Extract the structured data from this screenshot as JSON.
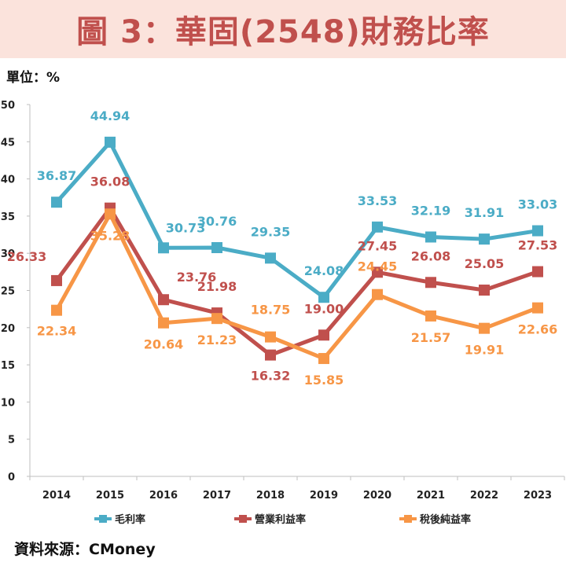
{
  "title": "圖 3：華固(2548)財務比率",
  "unit_label": "單位：%",
  "source": "資料來源：CMoney",
  "colors": {
    "title_bg": "#fbe3dc",
    "title_text": "#c0504d"
  },
  "chart_data": {
    "type": "line",
    "x": [
      "2014",
      "2015",
      "2016",
      "2017",
      "2018",
      "2019",
      "2020",
      "2021",
      "2022",
      "2023"
    ],
    "ylim": [
      0,
      50
    ],
    "yticks": [
      0,
      5,
      10,
      15,
      20,
      25,
      30,
      35,
      40,
      45,
      50
    ],
    "grid": false,
    "legend_position": "bottom",
    "series": [
      {
        "name": "毛利率",
        "color": "#4bacc6",
        "values": [
          36.87,
          44.94,
          30.73,
          30.76,
          29.35,
          24.08,
          33.53,
          32.19,
          31.91,
          33.03
        ],
        "labels": [
          "36.87",
          "44.94",
          "30.73",
          "30.76",
          "29.35",
          "24.08",
          "33.53",
          "32.19",
          "31.91",
          "33.03"
        ]
      },
      {
        "name": "營業利益率",
        "color": "#c0504d",
        "values": [
          26.33,
          36.08,
          23.76,
          21.98,
          16.32,
          19.0,
          27.45,
          26.08,
          25.05,
          27.53
        ],
        "labels": [
          "26.33",
          "36.08",
          "23.76",
          "21.98",
          "16.32",
          "19.00",
          "27.45",
          "26.08",
          "25.05",
          "27.53"
        ]
      },
      {
        "name": "稅後純益率",
        "color": "#f79646",
        "values": [
          22.34,
          35.28,
          20.64,
          21.23,
          18.75,
          15.85,
          24.45,
          21.57,
          19.91,
          22.66
        ],
        "labels": [
          "22.34",
          "35.28",
          "20.64",
          "21.23",
          "18.75",
          "15.85",
          "24.45",
          "21.57",
          "19.91",
          "22.66"
        ]
      }
    ]
  }
}
